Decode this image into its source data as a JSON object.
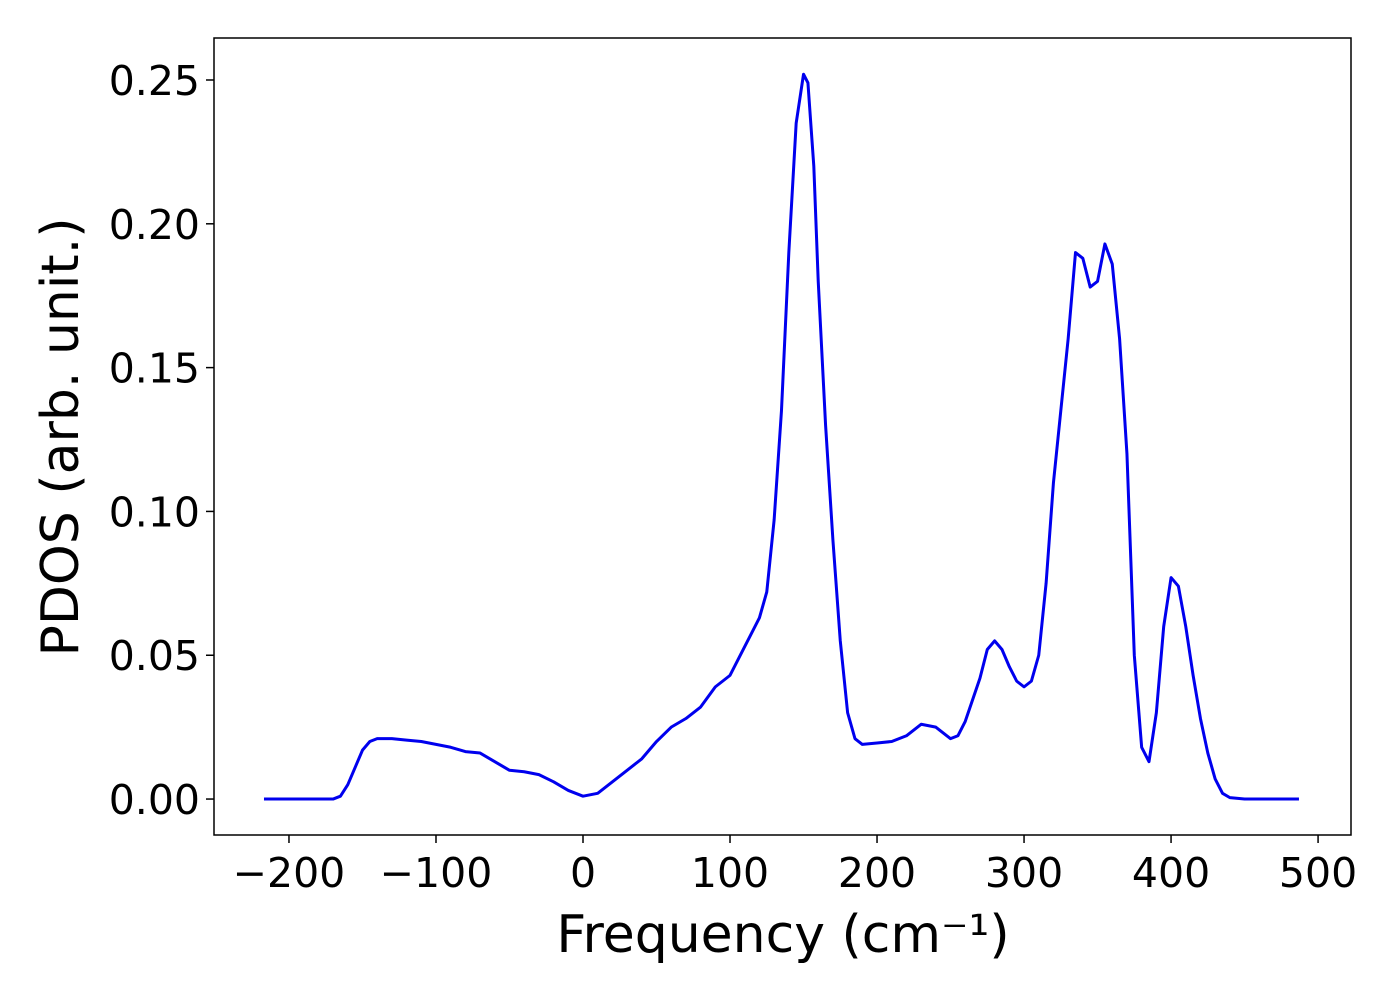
{
  "chart_data": {
    "type": "line",
    "xlabel": "Frequency (cm⁻¹)",
    "ylabel": "PDOS (arb. unit.)",
    "xlim": [
      -251,
      522.4
    ],
    "ylim": [
      -0.0125,
      0.2646
    ],
    "xticks": [
      {
        "value": -200,
        "label": "−200"
      },
      {
        "value": -100,
        "label": "−100"
      },
      0,
      100,
      200,
      300,
      400,
      500
    ],
    "yticks": [
      {
        "value": 0,
        "label": "0.00"
      },
      {
        "value": 0.05,
        "label": "0.05"
      },
      {
        "value": 0.1,
        "label": "0.10"
      },
      {
        "value": 0.15,
        "label": "0.15"
      },
      {
        "value": 0.2,
        "label": "0.20"
      },
      {
        "value": 0.25,
        "label": "0.25"
      }
    ],
    "x": [
      -217,
      -170,
      -165,
      -160,
      -155,
      -150,
      -145,
      -140,
      -130,
      -120,
      -110,
      -100,
      -90,
      -80,
      -70,
      -60,
      -50,
      -40,
      -30,
      -20,
      -10,
      0,
      10,
      20,
      30,
      40,
      50,
      60,
      70,
      80,
      90,
      100,
      110,
      120,
      125,
      130,
      135,
      140,
      145,
      150,
      153,
      157,
      160,
      165,
      170,
      175,
      180,
      185,
      190,
      200,
      210,
      220,
      230,
      240,
      250,
      255,
      260,
      270,
      275,
      280,
      285,
      290,
      295,
      300,
      305,
      310,
      315,
      320,
      325,
      330,
      335,
      340,
      345,
      350,
      355,
      360,
      365,
      370,
      375,
      380,
      385,
      390,
      395,
      400,
      405,
      410,
      415,
      420,
      425,
      430,
      435,
      440,
      450,
      487
    ],
    "series": [
      {
        "color": "#0000ee",
        "values": [
          0,
          0,
          0.001,
          0.005,
          0.011,
          0.017,
          0.02,
          0.021,
          0.021,
          0.0205,
          0.02,
          0.019,
          0.018,
          0.0165,
          0.016,
          0.013,
          0.01,
          0.0095,
          0.0085,
          0.006,
          0.003,
          0.001,
          0.002,
          0.006,
          0.01,
          0.014,
          0.02,
          0.025,
          0.028,
          0.032,
          0.039,
          0.043,
          0.053,
          0.063,
          0.072,
          0.097,
          0.135,
          0.19,
          0.235,
          0.252,
          0.249,
          0.22,
          0.18,
          0.13,
          0.09,
          0.055,
          0.03,
          0.021,
          0.019,
          0.0195,
          0.02,
          0.022,
          0.026,
          0.025,
          0.021,
          0.022,
          0.027,
          0.042,
          0.052,
          0.055,
          0.052,
          0.046,
          0.041,
          0.039,
          0.041,
          0.05,
          0.075,
          0.11,
          0.135,
          0.16,
          0.19,
          0.188,
          0.178,
          0.18,
          0.193,
          0.186,
          0.16,
          0.12,
          0.05,
          0.018,
          0.013,
          0.03,
          0.06,
          0.077,
          0.074,
          0.06,
          0.043,
          0.028,
          0.016,
          0.007,
          0.002,
          0.0005,
          0,
          0
        ]
      }
    ]
  }
}
